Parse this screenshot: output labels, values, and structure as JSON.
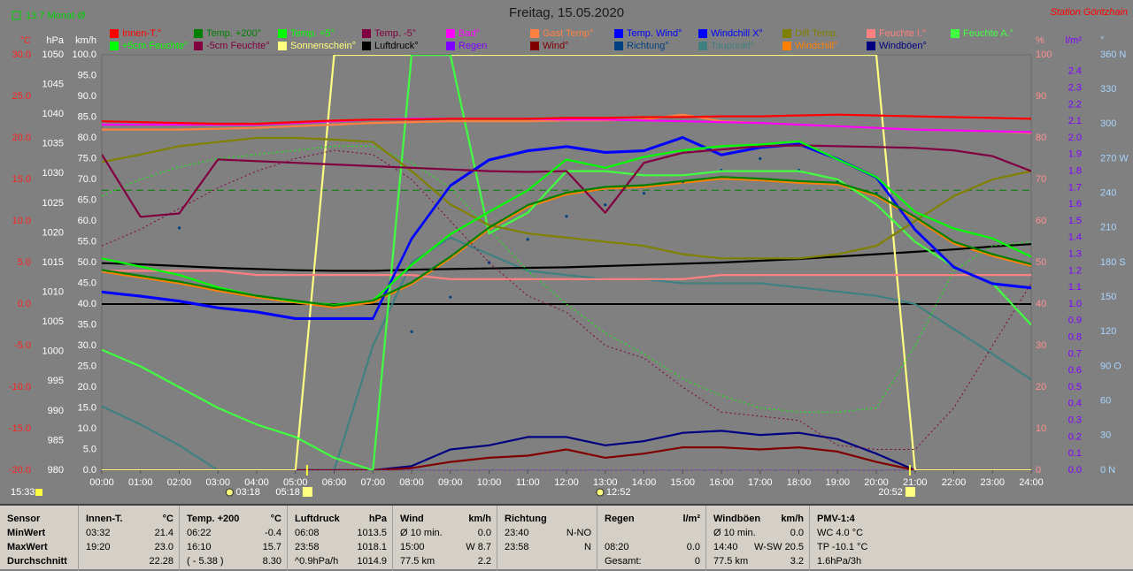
{
  "chart_data": {
    "type": "line",
    "title": "Freitag, 15.05.2020",
    "station": "Station Göritzhain",
    "month_avg": {
      "value": 13.7,
      "label": "13.7 Monat-Ø",
      "color": "#008000"
    },
    "zero_line": true,
    "xlim": [
      0,
      24
    ],
    "xticks": [
      {
        "value": 0,
        "label": "00:00"
      },
      {
        "value": 1,
        "label": "01:00"
      },
      {
        "value": 2,
        "label": "02:00"
      },
      {
        "value": 3,
        "label": "03:00"
      },
      {
        "value": 4,
        "label": "04:00"
      },
      {
        "value": 5,
        "label": "05:00"
      },
      {
        "value": 6,
        "label": "06:00"
      },
      {
        "value": 7,
        "label": "07:00"
      },
      {
        "value": 8,
        "label": "08:00"
      },
      {
        "value": 9,
        "label": "09:00"
      },
      {
        "value": 10,
        "label": "10:00"
      },
      {
        "value": 11,
        "label": "11:00"
      },
      {
        "value": 12,
        "label": "12:00"
      },
      {
        "value": 13,
        "label": "13:00"
      },
      {
        "value": 14,
        "label": "14:00"
      },
      {
        "value": 15,
        "label": "15:00"
      },
      {
        "value": 16,
        "label": "16:00"
      },
      {
        "value": 17,
        "label": "17:00"
      },
      {
        "value": 18,
        "label": "18:00"
      },
      {
        "value": 19,
        "label": "19:00"
      },
      {
        "value": 20,
        "label": "20:00"
      },
      {
        "value": 21,
        "label": "21:00"
      },
      {
        "value": 22,
        "label": "22:00"
      },
      {
        "value": 23,
        "label": "23:00"
      },
      {
        "value": 24,
        "label": "24:00"
      }
    ],
    "x": [
      0,
      1,
      2,
      3,
      4,
      5,
      6,
      7,
      8,
      9,
      10,
      11,
      12,
      13,
      14,
      15,
      16,
      17,
      18,
      19,
      20,
      21,
      22,
      23,
      24
    ],
    "y_label": "°C",
    "ylim": [
      -20,
      30
    ],
    "yticks": [
      {
        "value": 30,
        "label": "30.0"
      },
      {
        "value": 25,
        "label": "25.0"
      },
      {
        "value": 20,
        "label": "20.0"
      },
      {
        "value": 15,
        "label": "15.0"
      },
      {
        "value": 10,
        "label": "10.0"
      },
      {
        "value": 5,
        "label": "5.0"
      },
      {
        "value": 0,
        "label": "0.0"
      },
      {
        "value": -5,
        "label": "-5.0"
      },
      {
        "value": -10,
        "label": "-10.0"
      },
      {
        "value": -15,
        "label": "-15.0"
      },
      {
        "value": -20,
        "label": "-20.0"
      }
    ],
    "y2_label": "hPa",
    "y2lim": [
      980,
      1050
    ],
    "y2ticks": [
      1050,
      1045,
      1040,
      1035,
      1030,
      1025,
      1020,
      1015,
      1010,
      1005,
      1000,
      995,
      990,
      985,
      980
    ],
    "y3_label": "km/h",
    "y3lim": [
      0,
      100
    ],
    "y3ticks": [
      {
        "value": 100,
        "label": "100.0"
      },
      {
        "value": 95,
        "label": "95.0"
      },
      {
        "value": 90,
        "label": "90.0"
      },
      {
        "value": 85,
        "label": "85.0"
      },
      {
        "value": 80,
        "label": "80.0"
      },
      {
        "value": 75,
        "label": "75.0"
      },
      {
        "value": 70,
        "label": "70.0"
      },
      {
        "value": 65,
        "label": "65.0"
      },
      {
        "value": 60,
        "label": "60.0"
      },
      {
        "value": 55,
        "label": "55.0"
      },
      {
        "value": 50,
        "label": "50.0"
      },
      {
        "value": 45,
        "label": "45.0"
      },
      {
        "value": 40,
        "label": "40.0"
      },
      {
        "value": 35,
        "label": "35.0"
      },
      {
        "value": 30,
        "label": "30.0"
      },
      {
        "value": 25,
        "label": "25.0"
      },
      {
        "value": 20,
        "label": "20.0"
      },
      {
        "value": 15,
        "label": "15.0"
      },
      {
        "value": 10,
        "label": "10.0"
      },
      {
        "value": 5,
        "label": "5.0"
      },
      {
        "value": 0,
        "label": "0.0"
      }
    ],
    "y4_label": "%",
    "y4lim": [
      0,
      100
    ],
    "y4ticks": [
      100,
      90,
      80,
      70,
      60,
      50,
      40,
      30,
      20,
      10,
      0
    ],
    "y5_label": "l/m²",
    "y5lim": [
      0,
      2.5
    ],
    "y5ticks": [
      2.4,
      2.3,
      2.2,
      2.1,
      {
        "value": 2,
        "label": "2.0"
      },
      1.9,
      1.8,
      1.7,
      1.6,
      1.5,
      1.4,
      1.3,
      1.2,
      1.1,
      {
        "value": 1,
        "label": "1.0"
      },
      0.9,
      0.8,
      0.7,
      0.6,
      0.5,
      0.4,
      0.3,
      0.2,
      0.1,
      {
        "value": 0,
        "label": "0.0"
      }
    ],
    "y6_label": "°",
    "y6lim": [
      0,
      360
    ],
    "y6ticks": [
      {
        "value": 360,
        "label": "360 N"
      },
      330,
      300,
      {
        "value": 270,
        "label": "270 W"
      },
      240,
      210,
      {
        "value": 180,
        "label": "180 S"
      },
      150,
      120,
      {
        "value": 90,
        "label": "90 O"
      },
      60,
      30,
      {
        "value": 0,
        "label": "0 N"
      }
    ],
    "series": [
      {
        "name": "Innen-T.°",
        "color": "#ff0000",
        "axis": "y",
        "values": [
          22.0,
          21.9,
          21.8,
          21.7,
          21.7,
          21.9,
          22.1,
          22.2,
          22.2,
          22.3,
          22.3,
          22.3,
          22.4,
          22.4,
          22.5,
          22.5,
          22.6,
          22.6,
          22.7,
          22.8,
          22.7,
          22.6,
          22.5,
          22.4,
          22.3
        ]
      },
      {
        "name": "Temp. +200°",
        "color": "#008000",
        "axis": "y",
        "values": [
          4.1,
          3.4,
          2.7,
          1.8,
          1.0,
          0.4,
          -0.2,
          0.4,
          2.6,
          5.7,
          9.2,
          11.9,
          13.4,
          14.1,
          14.3,
          14.8,
          15.3,
          15.1,
          14.8,
          14.6,
          13.2,
          10.5,
          7.5,
          6.0,
          4.8
        ]
      },
      {
        "name": "Temp. +5°",
        "color": "#00ff00",
        "axis": "y",
        "values": [
          5.5,
          4.5,
          3.5,
          2.0,
          1.0,
          0.3,
          -0.1,
          0.4,
          4.7,
          8.4,
          11.1,
          13.7,
          17.4,
          16.4,
          17.7,
          18.5,
          19.0,
          19.2,
          19.6,
          17.4,
          15.3,
          11.1,
          9.1,
          7.9,
          5.7
        ]
      },
      {
        "name": "Temp. -5°",
        "color": "#800040",
        "axis": "y",
        "values": [
          18.0,
          10.5,
          10.9,
          17.4,
          17.2,
          17.0,
          16.8,
          16.6,
          16.4,
          16.2,
          16.0,
          15.9,
          16.0,
          11.0,
          17.0,
          18.2,
          18.6,
          19.0,
          19.1,
          19.0,
          18.9,
          18.8,
          18.5,
          17.8,
          16.0
        ]
      },
      {
        "name": "Bad°",
        "color": "#ff00ff",
        "axis": "y",
        "values": [
          21.6,
          21.6,
          21.6,
          21.6,
          21.6,
          21.8,
          22.0,
          22.2,
          22.3,
          22.3,
          22.3,
          22.3,
          22.2,
          22.2,
          22.1,
          22.0,
          21.9,
          21.8,
          21.6,
          21.4,
          21.2,
          21.0,
          20.9,
          20.8,
          20.7
        ]
      },
      {
        "name": "Gast Temp°",
        "color": "#ff8040",
        "axis": "y",
        "values": [
          21.0,
          21.0,
          21.0,
          21.1,
          21.2,
          21.4,
          21.6,
          21.8,
          21.9,
          22.0,
          22.0,
          22.0,
          22.1,
          22.1,
          22.2,
          22.8,
          22.0,
          21.8,
          21.6,
          21.4,
          21.2,
          21.0,
          20.9,
          20.8,
          20.6
        ]
      },
      {
        "name": "Temp. Wind°",
        "color": "#0000ff",
        "axis": "y",
        "values": [
          1.5,
          1.0,
          0.4,
          -0.4,
          -0.9,
          -1.7,
          -1.7,
          -1.7,
          7.9,
          14.3,
          17.4,
          18.5,
          19.0,
          18.3,
          18.5,
          20.1,
          18.0,
          18.9,
          19.3,
          17.5,
          15.3,
          9.0,
          4.5,
          2.5,
          2.0
        ]
      },
      {
        "name": "Windchill X°",
        "color": "#0000ff",
        "axis": "y",
        "values": [
          1.4,
          0.9,
          0.3,
          -0.5,
          -1.0,
          -1.8,
          -1.8,
          -1.8,
          7.8,
          14.2,
          17.3,
          18.4,
          18.9,
          18.2,
          18.4,
          20.0,
          17.9,
          18.8,
          19.2,
          17.4,
          15.2,
          8.9,
          4.4,
          2.4,
          1.9
        ]
      },
      {
        "name": "Diff Temp.",
        "color": "#808000",
        "axis": "y",
        "values": [
          17.1,
          18.0,
          19.0,
          19.5,
          20.0,
          20.0,
          19.8,
          19.5,
          16.0,
          12.0,
          9.5,
          8.5,
          8.0,
          7.5,
          7.0,
          6.0,
          5.5,
          5.5,
          5.5,
          6.0,
          7.0,
          10.0,
          13.0,
          15.0,
          16.0
        ]
      },
      {
        "name": "Feuchte I.°",
        "color": "#ff8080",
        "axis": "y4",
        "values": [
          48,
          48,
          48,
          48,
          47,
          47,
          47,
          47,
          47,
          46,
          46,
          46,
          46,
          46,
          46,
          46,
          47,
          47,
          47,
          47,
          47,
          47,
          47,
          47,
          47
        ]
      },
      {
        "name": "Feuchte A.°",
        "color": "#40ff40",
        "axis": "y4",
        "values": [
          29,
          25,
          20,
          15,
          11,
          8,
          3,
          0,
          100,
          100,
          57,
          62,
          72,
          72,
          71,
          71,
          72,
          72,
          72,
          70,
          64,
          55,
          49,
          45,
          35
        ]
      },
      {
        "name": "+5cm Feuchte°",
        "color": "#00ff00",
        "axis": "y4",
        "dashed": true,
        "values": [
          66,
          70,
          73,
          75,
          76,
          77,
          78,
          78,
          74,
          68,
          58,
          48,
          40,
          33,
          28,
          22,
          18,
          15,
          14,
          14,
          15,
          30,
          48,
          54,
          55
        ]
      },
      {
        "name": "-5cm Feuchte°",
        "color": "#800040",
        "axis": "y4",
        "dashed": true,
        "values": [
          54,
          58,
          63,
          68,
          72,
          75,
          77,
          76,
          70,
          60,
          50,
          42,
          38,
          30,
          27,
          20,
          14,
          13,
          12,
          6,
          5,
          5,
          15,
          30,
          45
        ]
      },
      {
        "name": "Sonnenschein°",
        "color": "#ffff80",
        "axis": "y4",
        "values": [
          0,
          0,
          0,
          0,
          0,
          0,
          100,
          100,
          100,
          100,
          100,
          100,
          100,
          100,
          100,
          100,
          100,
          100,
          100,
          100,
          100,
          0,
          0,
          0,
          0
        ]
      },
      {
        "name": "Luftdruck°",
        "color": "#000000",
        "axis": "y2",
        "values": [
          1014.9,
          1014.7,
          1014.4,
          1014.1,
          1013.9,
          1013.7,
          1013.6,
          1013.6,
          1013.8,
          1013.9,
          1014.0,
          1014.1,
          1014.2,
          1014.4,
          1014.6,
          1014.8,
          1015.0,
          1015.3,
          1015.6,
          1016.0,
          1016.4,
          1016.8,
          1017.2,
          1017.7,
          1018.1
        ]
      },
      {
        "name": "Regen",
        "color": "#8000ff",
        "axis": "y5",
        "dashed": true,
        "values": [
          0,
          0,
          0,
          0,
          0,
          0,
          0,
          0,
          0,
          0,
          0,
          0,
          0,
          0,
          0,
          0,
          0,
          0,
          0,
          0,
          0,
          0,
          0,
          0,
          0
        ]
      },
      {
        "name": "Wind°",
        "color": "#800000",
        "axis": "y3",
        "values": [
          0,
          0,
          0,
          0,
          0,
          0,
          0,
          0,
          0.5,
          2.0,
          3.0,
          3.5,
          5.0,
          3.0,
          4.0,
          5.5,
          5.5,
          5.0,
          5.5,
          4.5,
          2.0,
          0,
          0,
          0,
          0
        ]
      },
      {
        "name": "Richtung°",
        "color": "#004080",
        "axis": "y6",
        "style": "dots",
        "values": [
          null,
          null,
          210,
          null,
          null,
          null,
          null,
          null,
          120,
          150,
          180,
          200,
          220,
          230,
          240,
          250,
          260,
          270,
          260,
          250,
          240,
          null,
          null,
          null,
          null
        ]
      },
      {
        "name": "Taupunkt°",
        "color": "#408080",
        "axis": "y",
        "values": [
          -12.3,
          -14.5,
          -17.0,
          -20.0,
          -20.0,
          -20.0,
          -20.0,
          -5.0,
          5.0,
          8.0,
          6.0,
          4.0,
          3.5,
          3.0,
          3.0,
          2.5,
          2.5,
          2.5,
          2.0,
          1.5,
          1.0,
          0.0,
          -3.0,
          -6.0,
          -9.1
        ]
      },
      {
        "name": "Windchill°",
        "color": "#ff8000",
        "axis": "y",
        "values": [
          3.9,
          3.2,
          2.5,
          1.6,
          0.8,
          0.2,
          -0.4,
          0.2,
          2.4,
          5.5,
          9.0,
          11.7,
          13.2,
          13.9,
          14.1,
          14.6,
          15.1,
          14.9,
          14.6,
          14.4,
          13.0,
          10.3,
          7.3,
          5.8,
          4.6
        ]
      },
      {
        "name": "Windböen°",
        "color": "#000080",
        "axis": "y3",
        "values": [
          0,
          0,
          0,
          0,
          0,
          0,
          0,
          0,
          1.0,
          5.0,
          6.0,
          8.0,
          8.0,
          6.0,
          7.0,
          9.0,
          9.5,
          8.5,
          9.0,
          7.5,
          4.0,
          0,
          0,
          0,
          0
        ]
      }
    ],
    "now": "15:33",
    "events": [
      {
        "label": "03:18",
        "icon": "moon"
      },
      {
        "label": "05:18",
        "icon": "sun"
      },
      {
        "label": "12:52",
        "icon": "moon"
      },
      {
        "label": "20:52",
        "icon": "sun"
      }
    ]
  },
  "table": {
    "columns": [
      {
        "header": {
          "left": "Sensor"
        },
        "rows": [
          {
            "left": "MinWert"
          },
          {
            "left": "MaxWert"
          },
          {
            "left": "Durchschnitt"
          }
        ]
      },
      {
        "header": {
          "left": "Innen-T.",
          "right": "°C"
        },
        "rows": [
          {
            "left": "03:32",
            "right": "21.4"
          },
          {
            "left": "19:20",
            "right": "23.0"
          },
          {
            "right": "22.28"
          }
        ]
      },
      {
        "header": {
          "left": "Temp. +200",
          "right": "°C"
        },
        "rows": [
          {
            "left": "06:22",
            "right": "-0.4"
          },
          {
            "left": "16:10",
            "right": "15.7"
          },
          {
            "left": "( - 5.38 )",
            "right": "8.30"
          }
        ]
      },
      {
        "header": {
          "left": "Luftdruck",
          "right": "hPa"
        },
        "rows": [
          {
            "left": "06:08",
            "right": "1013.5"
          },
          {
            "left": "23:58",
            "right": "1018.1"
          },
          {
            "left": "^0.9hPa/h",
            "right": "1014.9"
          }
        ]
      },
      {
        "header": {
          "left": "Wind",
          "right": "km/h"
        },
        "rows": [
          {
            "left": "Ø 10 min.",
            "right": "0.0"
          },
          {
            "left": "15:00",
            "right": "W 8.7"
          },
          {
            "left": "77.5 km",
            "right": "2.2"
          }
        ]
      },
      {
        "header": {
          "left": "Richtung"
        },
        "rows": [
          {
            "left": "23:40",
            "right": "N-NO"
          },
          {
            "left": "23:58",
            "right": "N"
          },
          null
        ]
      },
      {
        "header": {
          "left": "Regen",
          "right": "l/m²"
        },
        "rows": [
          null,
          {
            "left": "08:20",
            "right": "0.0"
          },
          {
            "left": "Gesamt:",
            "right": "0"
          }
        ]
      },
      {
        "header": {
          "left": "Windböen",
          "right": "km/h"
        },
        "rows": [
          {
            "left": "Ø 10 min.",
            "right": "0.0"
          },
          {
            "left": "14:40",
            "right": "W-SW 20.5"
          },
          {
            "left": "77.5 km",
            "right": "3.2"
          }
        ]
      },
      {
        "header": {
          "left": "PMV-1:4"
        },
        "rows": [
          {
            "left": "WC 4.0 °C"
          },
          {
            "left": "TP -10.1 °C"
          },
          {
            "left": "1.6hPa/3h"
          }
        ]
      }
    ]
  }
}
